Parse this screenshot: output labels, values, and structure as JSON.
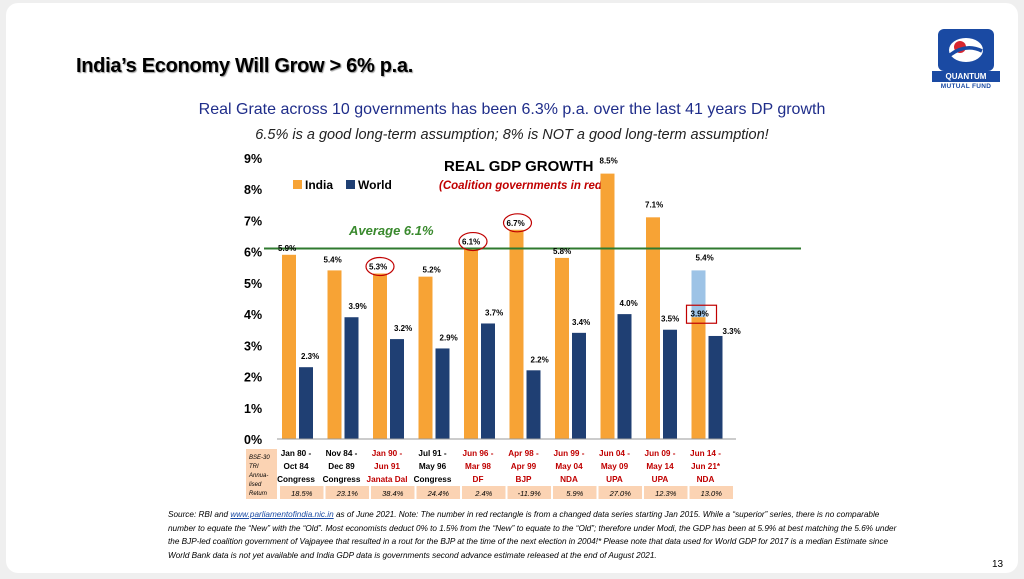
{
  "slide": {
    "title": "India’s Economy Will Grow > 6% p.a.",
    "subtitle": "Real Grate across 10 governments has been 6.3% p.a. over the last 41 years DP growth",
    "subtitle2": "6.5% is a good long-term assumption; 8% is NOT a good long-term assumption!",
    "page_number": "13",
    "logo": {
      "line1": "QUANTUM",
      "line2": "MUTUAL FUND"
    },
    "source_prefix": "Source: RBI and ",
    "source_link": "www.parliamentofindia.nic.in",
    "source_rest": " as of June 2021. Note: The number in red rectangle is from a changed data series starting Jan 2015. While a “superior” series, there is no comparable number to equate the “New” with the “Old”. Most economists deduct 0% to 1.5% from the “New” to equate to the “Old”; therefore under Modi, the GDP has been at 5.9% at best matching the 5.6% under the BJP-led coalition government of Vajpayee that resulted in a rout for the BJP at the time of the next election in 2004!* Please note that data used for World GDP for 2017 is a median Estimate since World Bank data is not yet available and India GDP data is governments second advance estimate released at the end of August 2021."
  },
  "colors": {
    "india": "#f7a335",
    "world": "#1f3f73",
    "india_new_series": "#9dc3e6",
    "average_line": "#2f7a2f",
    "average_label": "#3a8a2e",
    "coalition": "#c00000",
    "returns_bg": "#fbd3b3"
  },
  "chart_data": {
    "type": "bar",
    "title": "REAL GDP GROWTH",
    "subtitle": "(Coalition governments in red)",
    "ylim": [
      0,
      9
    ],
    "y_ticks": [
      "0%",
      "1%",
      "2%",
      "3%",
      "4%",
      "5%",
      "6%",
      "7%",
      "8%",
      "9%"
    ],
    "grid": false,
    "legend_position": "top-left",
    "categories": [
      {
        "line1": "Jan 80 -",
        "line2": "Oct 84",
        "party": "Congress",
        "coalition": false
      },
      {
        "line1": "Nov 84 -",
        "line2": "Dec 89",
        "party": "Congress",
        "coalition": false
      },
      {
        "line1": "Jan 90 -",
        "line2": "Jun 91",
        "party": "Janata Dal",
        "coalition": true
      },
      {
        "line1": "Jul 91 -",
        "line2": "May 96",
        "party": "Congress",
        "coalition": false
      },
      {
        "line1": "Jun 96 -",
        "line2": "Mar 98",
        "party": "DF",
        "coalition": true
      },
      {
        "line1": "Apr 98 -",
        "line2": "Apr 99",
        "party": "BJP",
        "coalition": true
      },
      {
        "line1": "Jun 99 -",
        "line2": "May 04",
        "party": "NDA",
        "coalition": true
      },
      {
        "line1": "Jun 04 -",
        "line2": "May 09",
        "party": "UPA",
        "coalition": true
      },
      {
        "line1": "Jun 09 -",
        "line2": "May 14",
        "party": "UPA",
        "coalition": true
      },
      {
        "line1": "Jun 14 -",
        "line2": "Jun 21*",
        "party": "NDA",
        "coalition": true
      }
    ],
    "series": [
      {
        "name": "India",
        "values": [
          5.9,
          5.4,
          5.3,
          5.2,
          6.1,
          6.7,
          5.8,
          8.5,
          7.1,
          5.4
        ],
        "labels": [
          "5.9%",
          "5.4%",
          "5.3%",
          "5.2%",
          "6.1%",
          "6.7%",
          "5.8%",
          "8.5%",
          "7.1%",
          "5.4%"
        ]
      },
      {
        "name": "World",
        "values": [
          2.3,
          3.9,
          3.2,
          2.9,
          3.7,
          2.2,
          3.4,
          4.0,
          3.5,
          3.3
        ],
        "labels": [
          "2.3%",
          "3.9%",
          "3.2%",
          "2.9%",
          "3.7%",
          "2.2%",
          "3.4%",
          "4.0%",
          "3.5%",
          "3.3%"
        ]
      }
    ],
    "india_old_series_last": {
      "value": 3.9,
      "label": "3.9%"
    },
    "circled_india_values": [
      2,
      4,
      5
    ],
    "average": {
      "value": 6.1,
      "label": "Average 6.1%"
    },
    "returns_row": {
      "label_lines": [
        "BSE-30",
        "TRI",
        "Annua-",
        "lised",
        "Return"
      ],
      "values": [
        "18.5%",
        "23.1%",
        "38.4%",
        "24.4%",
        "2.4%",
        "-11.9%",
        "5.9%",
        "27.0%",
        "12.3%",
        "13.0%"
      ]
    }
  }
}
